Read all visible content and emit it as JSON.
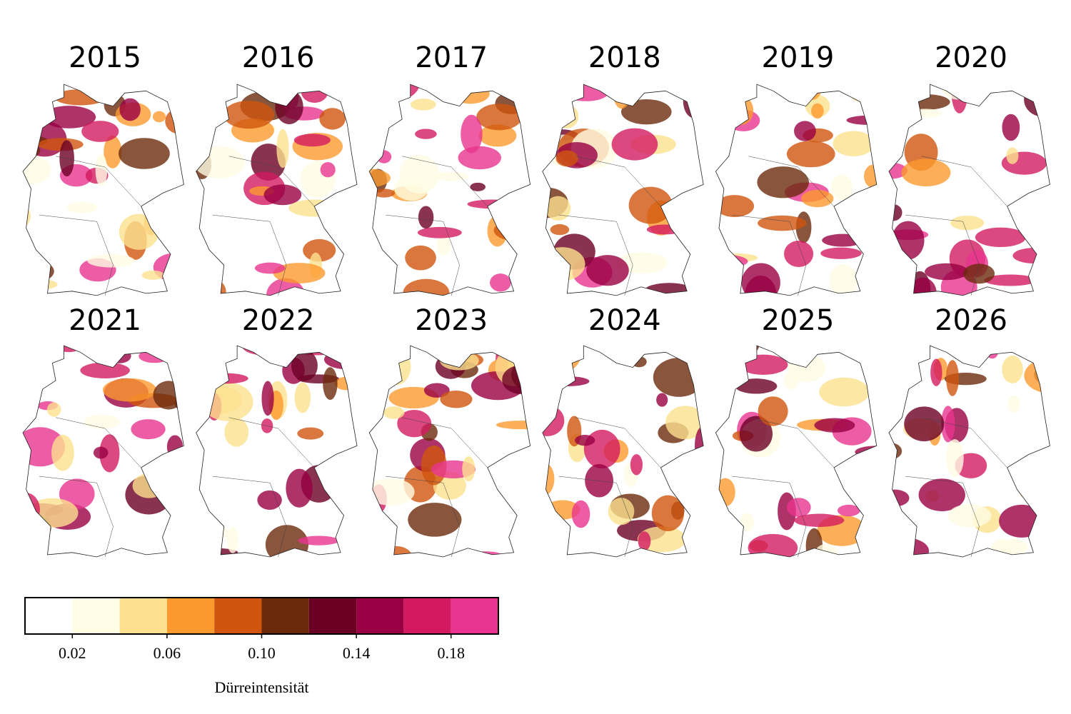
{
  "panels": [
    {
      "title": "2015"
    },
    {
      "title": "2016"
    },
    {
      "title": "2017"
    },
    {
      "title": "2018"
    },
    {
      "title": "2019"
    },
    {
      "title": "2020"
    },
    {
      "title": "2021"
    },
    {
      "title": "2022"
    },
    {
      "title": "2023"
    },
    {
      "title": "2024"
    },
    {
      "title": "2025"
    },
    {
      "title": "2026"
    }
  ],
  "colorbar": {
    "label": "Dürreintensität",
    "bounds": [
      0,
      0.02,
      0.04,
      0.06,
      0.08,
      0.1,
      0.12,
      0.14,
      0.16,
      0.18,
      0.2
    ],
    "colors": [
      "#ffffff",
      "#fffde3",
      "#fde18f",
      "#fb9a2e",
      "#d0550e",
      "#6b2a0c",
      "#6b0025",
      "#990044",
      "#d31a60",
      "#e8348e"
    ],
    "ticks": [
      0.02,
      0.06,
      {
        "value": 0.1,
        "label": "0.10"
      },
      0.14,
      0.18
    ]
  }
}
